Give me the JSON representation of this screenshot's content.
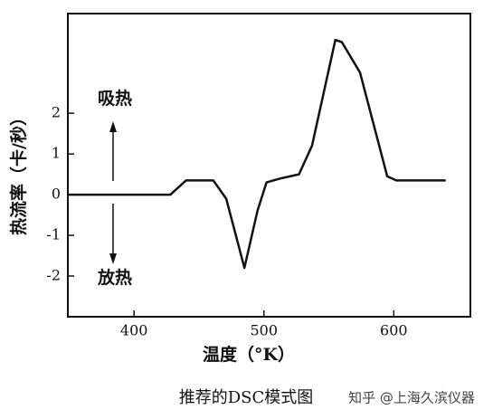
{
  "chart_data": {
    "type": "line",
    "ylabel": "热流率（卡/秒）",
    "xlabel": "温度（°K）",
    "caption": "推荐的DSC模式图",
    "watermark": "知乎 @上海久滨仪器",
    "annotations": [
      "吸热",
      "放热"
    ],
    "color": "#111111",
    "x": [
      349,
      428,
      440,
      461,
      471,
      485,
      495,
      502,
      513,
      527,
      537,
      555,
      560,
      574,
      595,
      602,
      640
    ],
    "values": [
      0,
      0,
      0.35,
      0.35,
      -0.1,
      -1.8,
      -0.4,
      0.3,
      0.4,
      0.5,
      1.2,
      3.8,
      3.75,
      3.0,
      0.45,
      0.35,
      0.35
    ],
    "xlim": [
      349,
      659
    ],
    "ylim": [
      -3,
      4.45
    ],
    "xticks": [
      400,
      500,
      600
    ],
    "yticks": [
      -2,
      -1,
      0,
      1,
      2
    ]
  }
}
